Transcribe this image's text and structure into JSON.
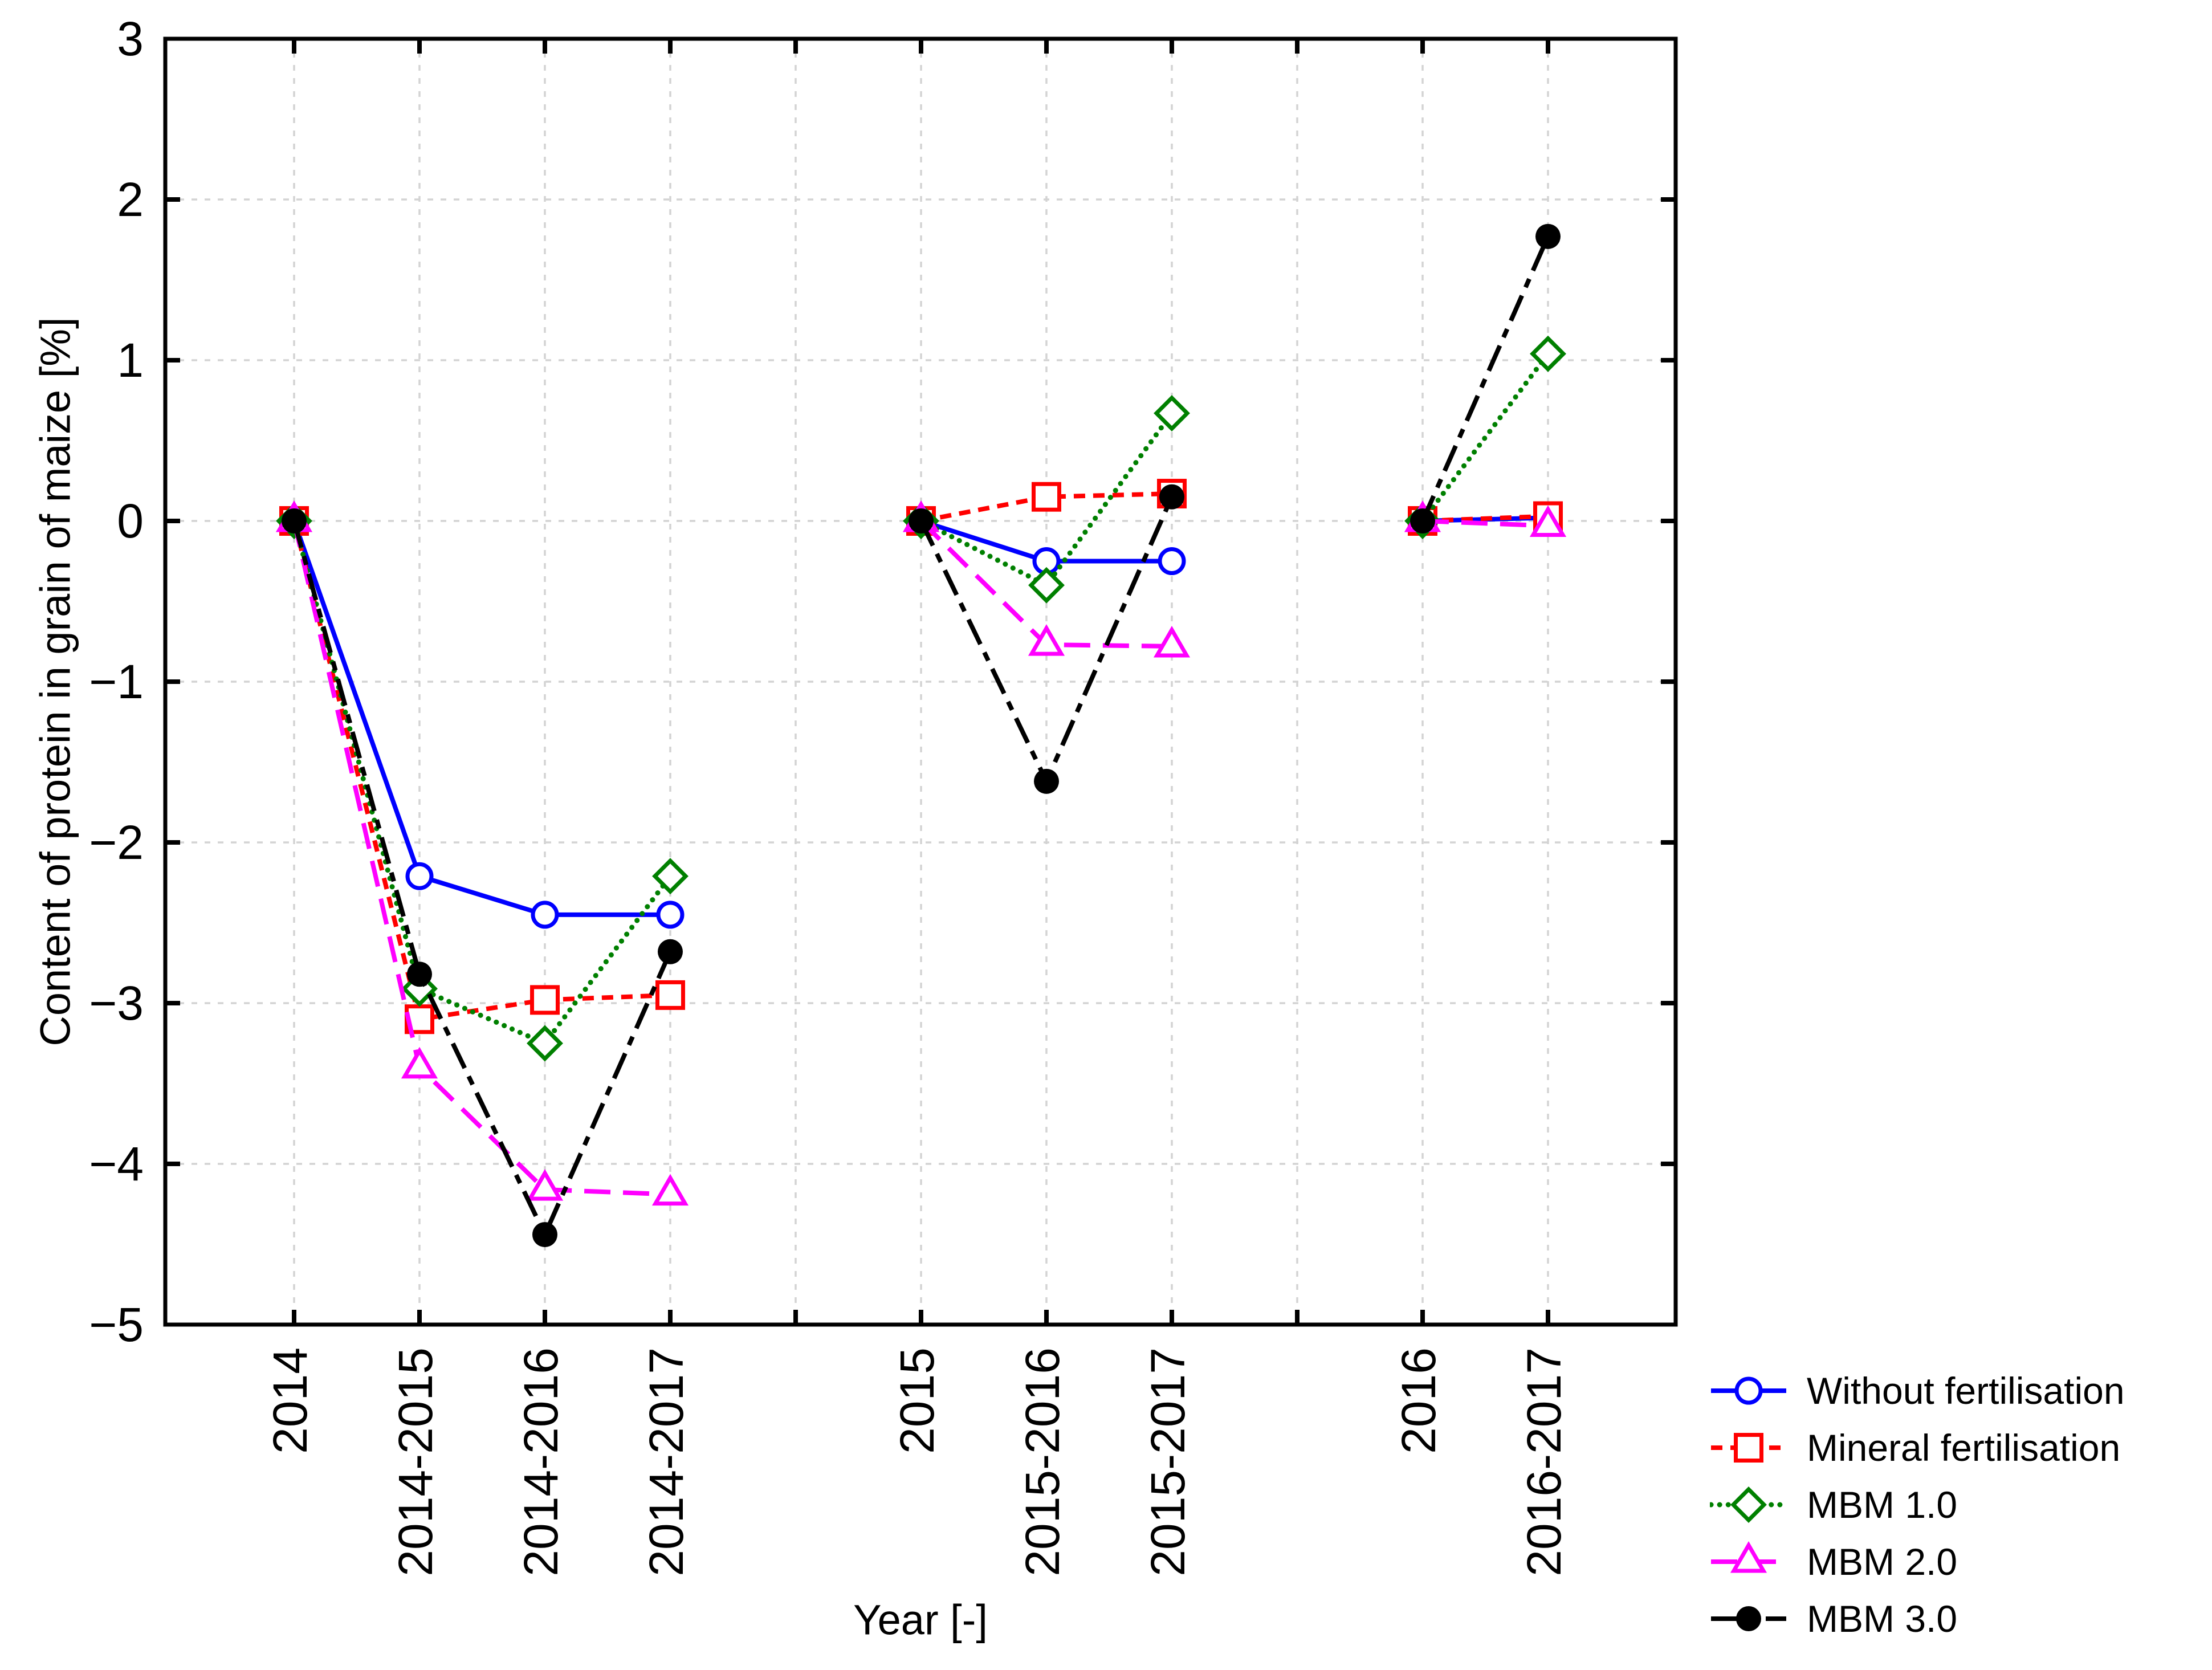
{
  "chart_data": {
    "type": "line",
    "title": "",
    "xlabel": "Year [-]",
    "ylabel": "Content of protein in grain of maize [%]",
    "ylim": [
      -5,
      3
    ],
    "grid": true,
    "grid_style": "dashed light gray, horizontal at every integer, vertical at every category",
    "grid_color": "#D3D3D3",
    "frame_color": "#000000",
    "legend_position": "outside bottom-right",
    "categories": [
      "2014",
      "2014-2015",
      "2014-2016",
      "2014-2017",
      "",
      "2015",
      "2015-2016",
      "2015-2017",
      "",
      "2016",
      "2016-2017"
    ],
    "y_ticks": [
      {
        "label": "3",
        "value": 3
      },
      {
        "label": "2",
        "value": 2
      },
      {
        "label": "1",
        "value": 1
      },
      {
        "label": "0",
        "value": 0
      },
      {
        "label": "−1",
        "value": -1
      },
      {
        "label": "−2",
        "value": -2
      },
      {
        "label": "−3",
        "value": -3
      },
      {
        "label": "−4",
        "value": -4
      },
      {
        "label": "−5",
        "value": -5
      }
    ],
    "series": [
      {
        "name": "Without fertilisation",
        "color": "#0000FF",
        "marker": "circle-open",
        "line": "solid",
        "values": [
          0,
          -2.21,
          -2.45,
          -2.45,
          null,
          0,
          -0.25,
          -0.25,
          null,
          0,
          0.02
        ]
      },
      {
        "name": "Mineral fertilisation",
        "color": "#FF0000",
        "marker": "square-open",
        "line": "dash",
        "values": [
          0,
          -3.1,
          -2.98,
          -2.95,
          null,
          0,
          0.15,
          0.17,
          null,
          0,
          0.03
        ]
      },
      {
        "name": "MBM 1.0",
        "color": "#008000",
        "marker": "diamond-open",
        "line": "dot",
        "values": [
          0,
          -2.91,
          -3.25,
          -2.21,
          null,
          0,
          -0.4,
          0.67,
          null,
          0,
          1.04
        ]
      },
      {
        "name": "MBM 2.0",
        "color": "#FF00FF",
        "marker": "triangle-open",
        "line": "longdash",
        "values": [
          0,
          -3.4,
          -4.16,
          -4.19,
          null,
          0,
          -0.77,
          -0.78,
          null,
          0,
          -0.03
        ]
      },
      {
        "name": "MBM 3.0",
        "color": "#000000",
        "marker": "circle-filled",
        "line": "dashdot",
        "values": [
          0,
          -2.82,
          -4.44,
          -2.68,
          null,
          0,
          -1.62,
          0.15,
          null,
          0,
          1.77
        ]
      }
    ]
  }
}
